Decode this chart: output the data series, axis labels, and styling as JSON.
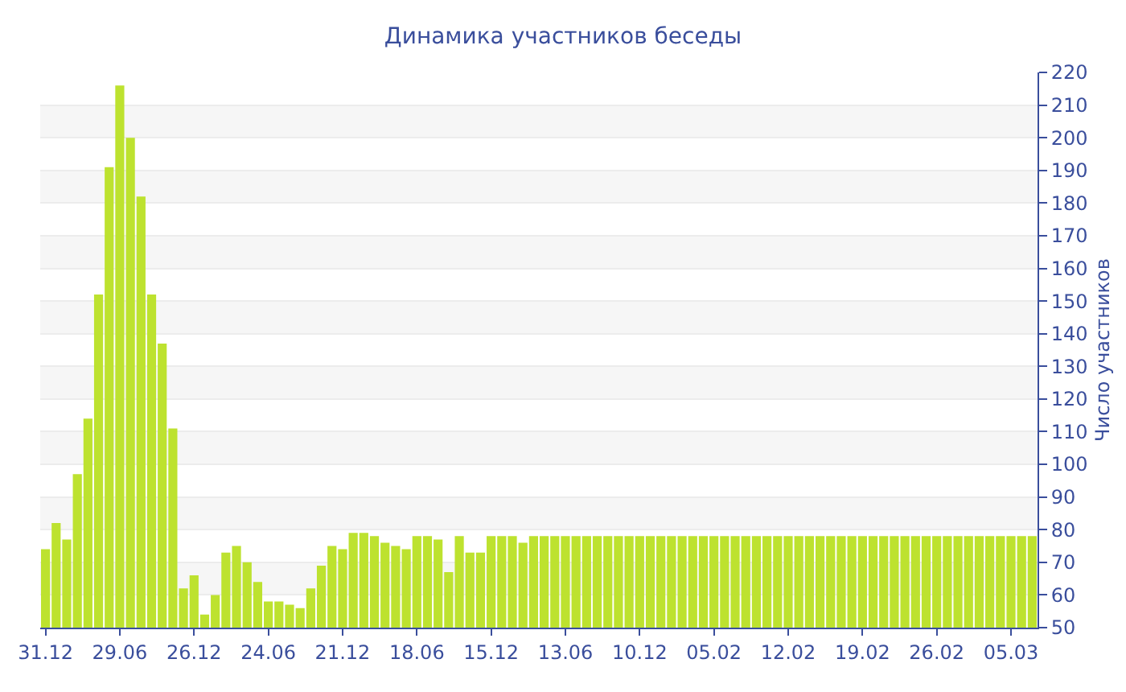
{
  "chart_data": {
    "type": "bar",
    "title": "Динамика участников беседы",
    "ylabel": "Число участников",
    "color": "#bde22f",
    "categories": [
      "31.12",
      null,
      null,
      null,
      null,
      null,
      null,
      "29.06",
      null,
      null,
      null,
      null,
      null,
      null,
      "26.12",
      null,
      null,
      null,
      null,
      null,
      null,
      "24.06",
      null,
      null,
      null,
      null,
      null,
      null,
      "21.12",
      null,
      null,
      null,
      null,
      null,
      null,
      "18.06",
      null,
      null,
      null,
      null,
      null,
      null,
      "15.12",
      null,
      null,
      null,
      null,
      null,
      null,
      "13.06",
      null,
      null,
      null,
      null,
      null,
      null,
      "10.12",
      null,
      null,
      null,
      null,
      null,
      null,
      "05.02",
      null,
      null,
      null,
      null,
      null,
      null,
      "12.02",
      null,
      null,
      null,
      null,
      null,
      null,
      "19.02",
      null,
      null,
      null,
      null,
      null,
      null,
      "26.02",
      null,
      null,
      null,
      null,
      null,
      null,
      "05.03",
      null,
      null
    ],
    "values": [
      74,
      82,
      77,
      97,
      114,
      152,
      191,
      216,
      200,
      182,
      152,
      137,
      111,
      62,
      66,
      54,
      60,
      73,
      75,
      70,
      64,
      58,
      58,
      57,
      56,
      62,
      69,
      75,
      74,
      79,
      79,
      78,
      76,
      75,
      74,
      78,
      78,
      77,
      67,
      78,
      73,
      73,
      78,
      78,
      78,
      76,
      78,
      78,
      78,
      78,
      78,
      78,
      78,
      78,
      78,
      78,
      78,
      78,
      78,
      78,
      78,
      78,
      78,
      78,
      78,
      78,
      78,
      78,
      78,
      78,
      78,
      78,
      78,
      78,
      78,
      78,
      78,
      78,
      78,
      78,
      78,
      78,
      78,
      78,
      78,
      78,
      78,
      78,
      78,
      78,
      78,
      78,
      78,
      78
    ],
    "ylim": [
      50,
      220
    ],
    "yticks": [
      50,
      60,
      70,
      80,
      90,
      100,
      110,
      120,
      130,
      140,
      150,
      160,
      170,
      180,
      190,
      200,
      210,
      220
    ],
    "grid": "y"
  }
}
